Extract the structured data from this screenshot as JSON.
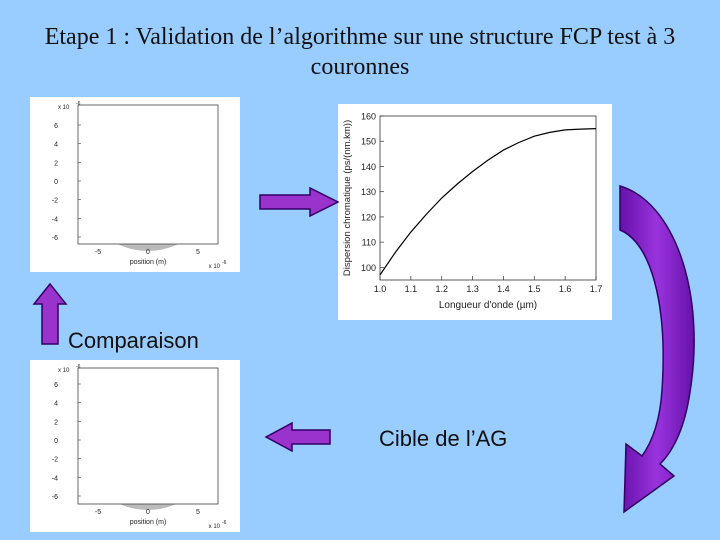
{
  "title": "Etape 1 : Validation de l’algorithme sur une structure FCP test à 3 couronnes",
  "labels": {
    "comparaison": "Comparaison",
    "cible": "Cible de l’AG"
  },
  "structure_plot_top": {
    "exponent_label": "x 10",
    "exponent": "-6",
    "y_ticks": [
      "6",
      "4",
      "2",
      "0",
      "-2",
      "-4",
      "-6"
    ],
    "x_ticks": [
      "-5",
      "0",
      "5"
    ],
    "xlabel": "position (m)",
    "x_exponent_label": "x 10",
    "x_exponent": "-6",
    "hole_color": "#111111",
    "cladding_color": "#bbbbbb"
  },
  "structure_plot_bottom": {
    "exponent_label": "x 10",
    "exponent": "-6",
    "y_ticks": [
      "6",
      "4",
      "2",
      "0",
      "-2",
      "-4",
      "-6"
    ],
    "x_ticks": [
      "-5",
      "0",
      "5"
    ],
    "xlabel": "position (m)",
    "x_exponent_label": "x 10",
    "x_exponent": "-6",
    "hole_color": "#9933ff",
    "cladding_color": "#bbbbbb"
  },
  "chart_data": {
    "type": "line",
    "xlabel": "Longueur d'onde (µm)",
    "ylabel": "Dispersion chromatique (ps/(nm.km))",
    "xlim": [
      1.0,
      1.7
    ],
    "ylim": [
      95,
      160
    ],
    "x_ticks": [
      "1.0",
      "1.1",
      "1.2",
      "1.3",
      "1.4",
      "1.5",
      "1.6",
      "1.7"
    ],
    "y_ticks": [
      "100",
      "110",
      "120",
      "130",
      "140",
      "150",
      "160"
    ],
    "series": [
      {
        "x": [
          1.0,
          1.05,
          1.1,
          1.15,
          1.2,
          1.25,
          1.3,
          1.35,
          1.4,
          1.45,
          1.5,
          1.55,
          1.6,
          1.65,
          1.7
        ],
        "y": [
          97,
          106,
          114,
          121,
          127.5,
          133,
          138,
          142.5,
          146.5,
          149.5,
          152,
          153.5,
          154.5,
          154.8,
          155
        ]
      }
    ]
  },
  "colors": {
    "arrow_fill": "#9933cc",
    "arrow_dark": "#330066",
    "background": "#99ccff"
  }
}
